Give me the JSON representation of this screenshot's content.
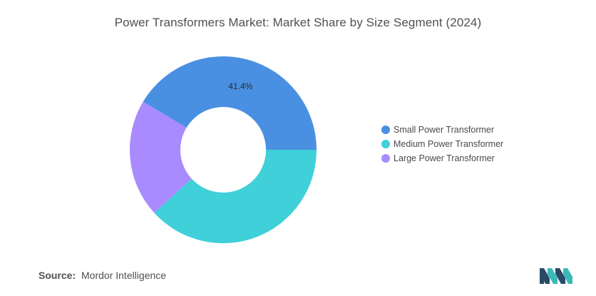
{
  "chart_data": {
    "type": "pie",
    "title": "Power Transformers Market: Market Share by Size Segment (2024)",
    "categories": [
      "Small Power Transformer",
      "Medium Power Transformer",
      "Large Power Transformer"
    ],
    "values": [
      41.4,
      38.2,
      20.4
    ],
    "data_labels": [
      "41.4%",
      "",
      ""
    ],
    "colors": [
      "#4a90e2",
      "#3fd0d9",
      "#a98bff"
    ],
    "donut": true,
    "legend_position": "right"
  },
  "source": {
    "label": "Source:",
    "value": "Mordor Intelligence"
  },
  "logo": {
    "icon": "mordor-intelligence-logo",
    "colors": [
      "#2a4a66",
      "#38b9b8"
    ]
  }
}
